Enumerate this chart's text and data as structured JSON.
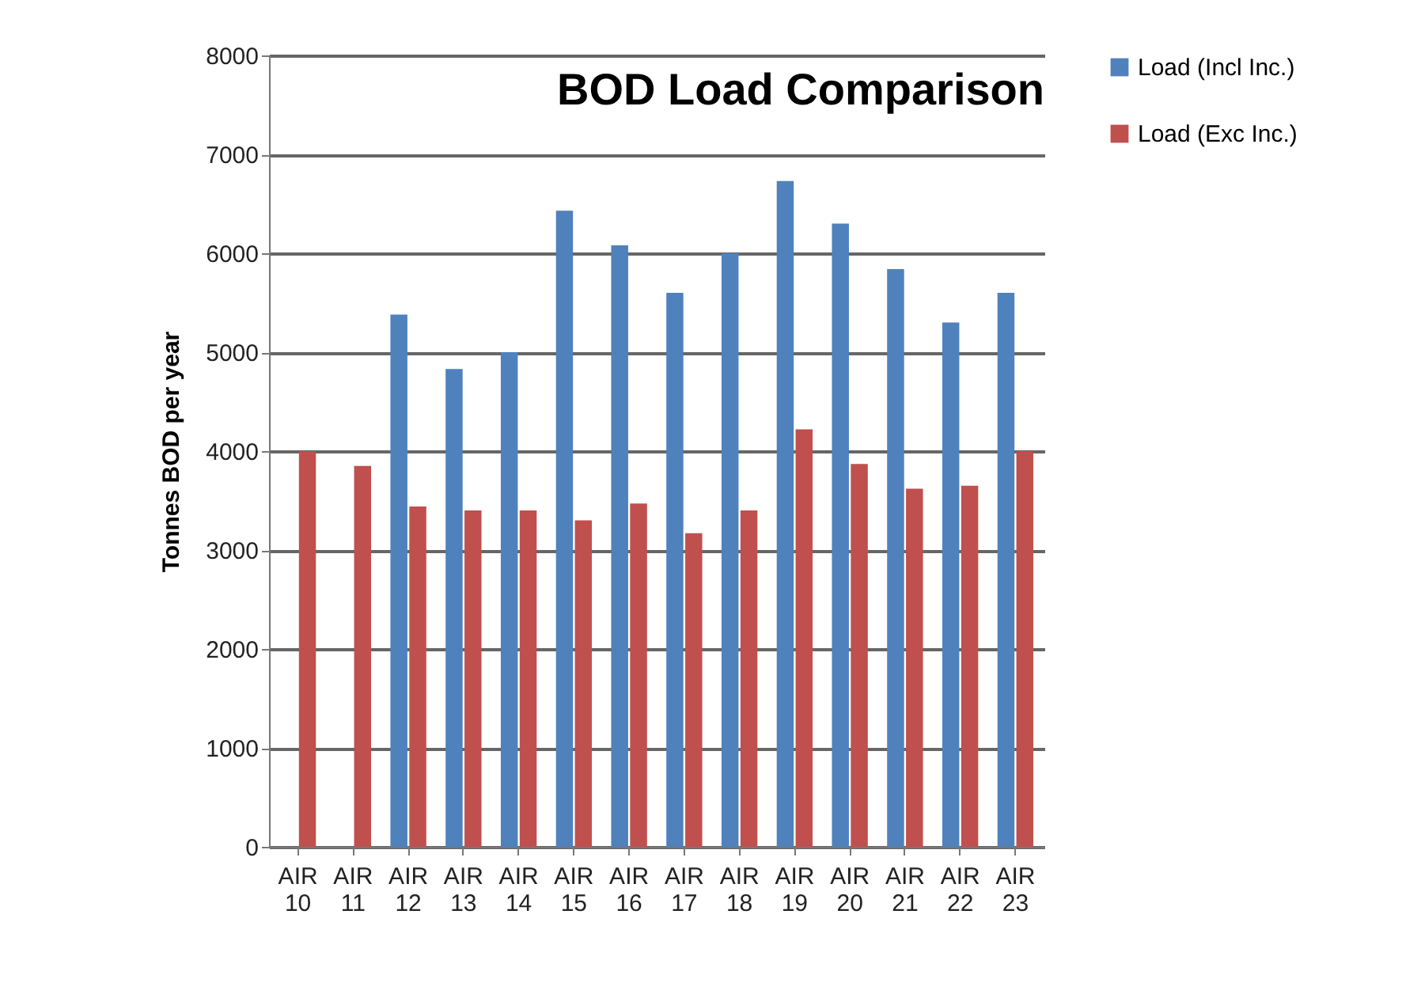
{
  "chart_data": {
    "type": "bar",
    "title": "BOD Load Comparison",
    "ylabel": "Tonnes BOD per year",
    "categories": [
      "AIR 10",
      "AIR 11",
      "AIR 12",
      "AIR 13",
      "AIR 14",
      "AIR 15",
      "AIR 16",
      "AIR 17",
      "AIR 18",
      "AIR 19",
      "AIR 20",
      "AIR 21",
      "AIR 22",
      "AIR 23"
    ],
    "series": [
      {
        "name": "Load (Incl Inc.)",
        "color": "#4f81bd",
        "values": [
          null,
          null,
          5380,
          4830,
          5000,
          6430,
          6080,
          5600,
          6000,
          6730,
          6300,
          5840,
          5300,
          5600
        ]
      },
      {
        "name": "Load (Exc Inc.)",
        "color": "#c0504d",
        "values": [
          4000,
          3850,
          3440,
          3400,
          3400,
          3300,
          3470,
          3170,
          3400,
          4220,
          3870,
          3620,
          3650,
          4000
        ]
      }
    ],
    "ylim": [
      0,
      8000
    ],
    "yticks": [
      0,
      1000,
      2000,
      3000,
      4000,
      5000,
      6000,
      7000,
      8000
    ],
    "grid": "y",
    "legend": "right"
  }
}
